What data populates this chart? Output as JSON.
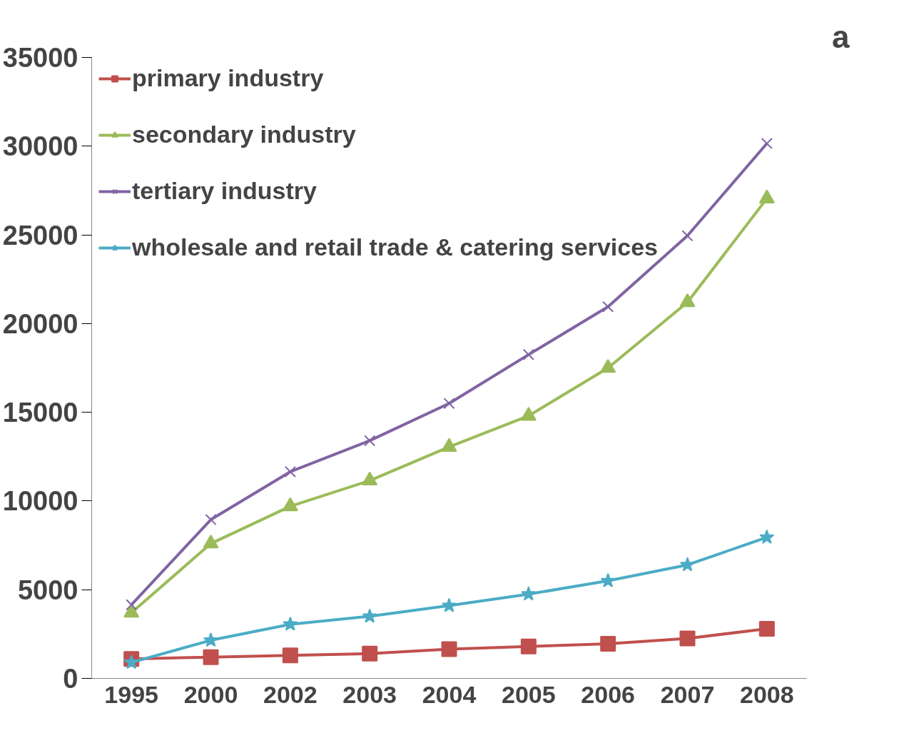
{
  "chart_data": {
    "type": "line",
    "categories": [
      "1995",
      "2000",
      "2002",
      "2003",
      "2004",
      "2005",
      "2006",
      "2007",
      "2008"
    ],
    "series": [
      {
        "name": "primary industry",
        "color": "#c0504d",
        "marker": "square",
        "values": [
          1100,
          1200,
          1300,
          1400,
          1650,
          1800,
          1950,
          2250,
          2800
        ]
      },
      {
        "name": "secondary industry",
        "color": "#9bbb59",
        "marker": "triangle",
        "values": [
          3700,
          7600,
          9700,
          11150,
          13050,
          14800,
          17500,
          21200,
          27050
        ]
      },
      {
        "name": "tertiary industry",
        "color": "#8064a2",
        "marker": "cross",
        "values": [
          4150,
          8950,
          11650,
          13400,
          15500,
          18250,
          20950,
          24950,
          30150
        ]
      },
      {
        "name": "wholesale and retail trade & catering services",
        "color": "#4bacc6",
        "marker": "star",
        "values": [
          900,
          2150,
          3050,
          3500,
          4100,
          4750,
          5500,
          6400,
          7950
        ]
      }
    ],
    "ylim": [
      0,
      35000
    ],
    "yticks": [
      0,
      5000,
      10000,
      15000,
      20000,
      25000,
      30000,
      35000
    ],
    "grid": false,
    "legend": "top left",
    "line_style": "solid",
    "annotations": [
      "a"
    ]
  }
}
